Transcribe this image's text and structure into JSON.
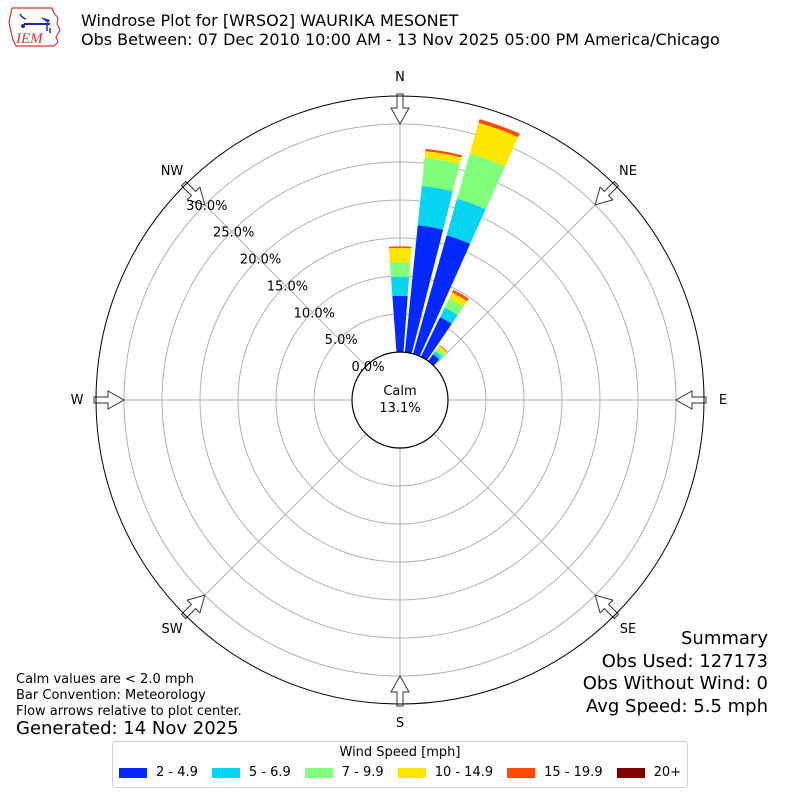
{
  "header": {
    "logo_text": "IEM",
    "title_line1": "Windrose Plot for [WRSO2] WAURIKA MESONET",
    "title_line2": "Obs Between: 07 Dec 2010 10:00 AM - 13 Nov 2025 05:00 PM America/Chicago"
  },
  "calm": {
    "label": "Calm",
    "value": "13.1%"
  },
  "notes": {
    "line1": "Calm values are < 2.0 mph",
    "line2": "Bar Convention: Meteorology",
    "line3": "Flow arrows relative to plot center.",
    "generated": "Generated: 14 Nov 2025"
  },
  "summary": {
    "title": "Summary",
    "obs_used": "Obs Used: 127173",
    "obs_without_wind": "Obs Without Wind: 0",
    "avg_speed": "Avg Speed: 5.5 mph"
  },
  "legend": {
    "title": "Wind Speed [mph]",
    "items": [
      {
        "label": "2 - 4.9",
        "color": "#0429ff"
      },
      {
        "label": "5 - 6.9",
        "color": "#05d5f1"
      },
      {
        "label": "7 - 9.9",
        "color": "#80ff7c"
      },
      {
        "label": "10 - 14.9",
        "color": "#ffe600"
      },
      {
        "label": "15 - 19.9",
        "color": "#ff4a00"
      },
      {
        "label": "20+",
        "color": "#7f0000"
      }
    ]
  },
  "chart_data": {
    "type": "bar",
    "subtype": "polar-windrose",
    "title": "Windrose Plot for [WRSO2] WAURIKA MESONET",
    "subtitle": "Obs Between: 07 Dec 2010 10:00 AM - 13 Nov 2025 05:00 PM America/Chicago",
    "direction_labels": [
      "N",
      "NE",
      "E",
      "SE",
      "S",
      "SW",
      "W",
      "NW"
    ],
    "radial_tick_labels": [
      "0.0%",
      "5.0%",
      "10.0%",
      "15.0%",
      "20.0%",
      "25.0%",
      "30.0%"
    ],
    "rlim": [
      0,
      33
    ],
    "bin_width_deg": 10,
    "calm_percent": 13.1,
    "grid": true,
    "legend_position": "bottom",
    "series_names": [
      "2 - 4.9",
      "5 - 6.9",
      "7 - 9.9",
      "10 - 14.9",
      "15 - 19.9",
      "20+"
    ],
    "bars": [
      {
        "direction_deg": 0,
        "cumulative_percent": [
          7.4,
          9.9,
          11.8,
          13.7,
          13.9,
          13.9
        ]
      },
      {
        "direction_deg": 10,
        "cumulative_percent": [
          16.8,
          22.0,
          25.7,
          26.6,
          26.9,
          26.9
        ]
      },
      {
        "direction_deg": 20,
        "cumulative_percent": [
          16.2,
          21.2,
          27.4,
          31.6,
          32.1,
          32.1
        ]
      },
      {
        "direction_deg": 30,
        "cumulative_percent": [
          5.8,
          7.2,
          8.5,
          9.4,
          9.8,
          9.8
        ]
      },
      {
        "direction_deg": 40,
        "cumulative_percent": [
          1.1,
          1.6,
          2.1,
          2.5,
          2.6,
          2.6
        ]
      }
    ]
  }
}
